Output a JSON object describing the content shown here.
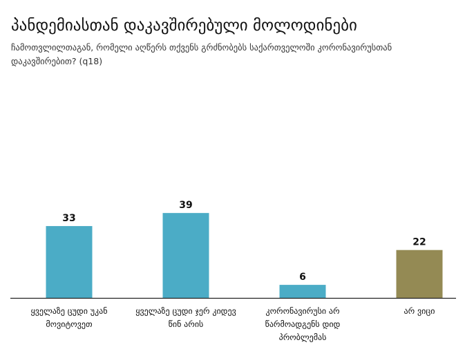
{
  "chart_data": {
    "type": "bar",
    "title": "პანდემიასთან დაკავშირებული მოლოდინები",
    "subtitle": "ჩამოთვლილთაგან, რომელი აღწერს თქვენს გრძნობებს საქართველოში კორონავირუსთან დაკავშირებით? (q18)",
    "categories": [
      "ყველაზე ცუდი უკან მოვიტოვეთ",
      "ყველაზე ცუდი ჯერ კიდევ წინ არის",
      "კორონავირუსი არ წარმოადგენს დიდ პრობლემას",
      "არ ვიცი"
    ],
    "values": [
      33,
      39,
      6,
      22
    ],
    "colors": [
      "#4bacc6",
      "#4bacc6",
      "#4bacc6",
      "#948a54"
    ],
    "xlabel": "",
    "ylabel": "",
    "ylim": [
      0,
      100
    ],
    "grid": false,
    "legend": "none"
  }
}
